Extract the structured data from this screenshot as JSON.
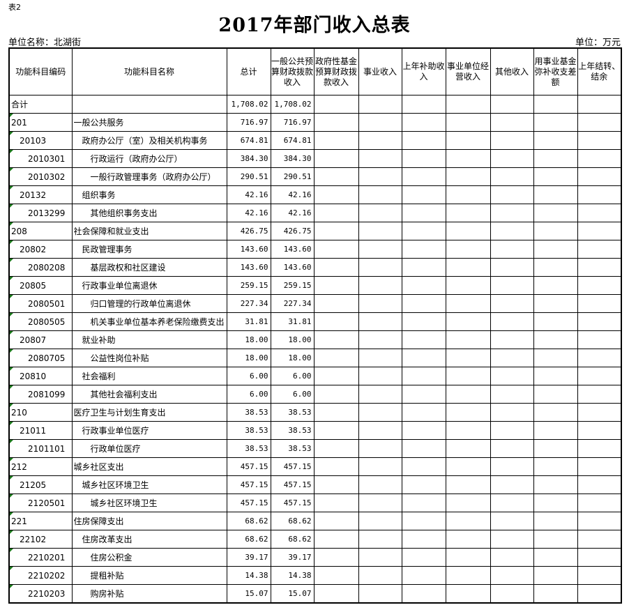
{
  "tag": "表2",
  "title": "2017年部门收入总表",
  "unit_name": "单位名称：北湖街",
  "unit": "单位：万元",
  "headers": [
    "功能科目编码",
    "功能科目名称",
    "总计",
    "一般公共预算财政拨款收入",
    "政府性基金预算财政拨款收入",
    "事业收入",
    "上年补助收入",
    "事业单位经营收入",
    "其他收入",
    "用事业基金弥补收支差额",
    "上年结转、结余"
  ],
  "rows": [
    {
      "code": "合计",
      "name": "",
      "total": "1,708.02",
      "general": "1,708.02",
      "level": 0
    },
    {
      "code": "201",
      "name": "一般公共服务",
      "total": "716.97",
      "general": "716.97",
      "level": 0
    },
    {
      "code": "20103",
      "name": "政府办公厅（室）及相关机构事务",
      "total": "674.81",
      "general": "674.81",
      "level": 1
    },
    {
      "code": "2010301",
      "name": "行政运行（政府办公厅）",
      "total": "384.30",
      "general": "384.30",
      "level": 2
    },
    {
      "code": "2010302",
      "name": "一般行政管理事务（政府办公厅）",
      "total": "290.51",
      "general": "290.51",
      "level": 2
    },
    {
      "code": "20132",
      "name": "组织事务",
      "total": "42.16",
      "general": "42.16",
      "level": 1
    },
    {
      "code": "2013299",
      "name": "其他组织事务支出",
      "total": "42.16",
      "general": "42.16",
      "level": 2
    },
    {
      "code": "208",
      "name": "社会保障和就业支出",
      "total": "426.75",
      "general": "426.75",
      "level": 0
    },
    {
      "code": "20802",
      "name": "民政管理事务",
      "total": "143.60",
      "general": "143.60",
      "level": 1
    },
    {
      "code": "2080208",
      "name": "基层政权和社区建设",
      "total": "143.60",
      "general": "143.60",
      "level": 2
    },
    {
      "code": "20805",
      "name": "行政事业单位离退休",
      "total": "259.15",
      "general": "259.15",
      "level": 1
    },
    {
      "code": "2080501",
      "name": "归口管理的行政单位离退休",
      "total": "227.34",
      "general": "227.34",
      "level": 2
    },
    {
      "code": "2080505",
      "name": "机关事业单位基本养老保险缴费支出",
      "total": "31.81",
      "general": "31.81",
      "level": 2
    },
    {
      "code": "20807",
      "name": "就业补助",
      "total": "18.00",
      "general": "18.00",
      "level": 1
    },
    {
      "code": "2080705",
      "name": "公益性岗位补贴",
      "total": "18.00",
      "general": "18.00",
      "level": 2
    },
    {
      "code": "20810",
      "name": "社会福利",
      "total": "6.00",
      "general": "6.00",
      "level": 1
    },
    {
      "code": "2081099",
      "name": "其他社会福利支出",
      "total": "6.00",
      "general": "6.00",
      "level": 2
    },
    {
      "code": "210",
      "name": "医疗卫生与计划生育支出",
      "total": "38.53",
      "general": "38.53",
      "level": 0
    },
    {
      "code": "21011",
      "name": "行政事业单位医疗",
      "total": "38.53",
      "general": "38.53",
      "level": 1
    },
    {
      "code": "2101101",
      "name": "行政单位医疗",
      "total": "38.53",
      "general": "38.53",
      "level": 2
    },
    {
      "code": "212",
      "name": "城乡社区支出",
      "total": "457.15",
      "general": "457.15",
      "level": 0
    },
    {
      "code": "21205",
      "name": "城乡社区环境卫生",
      "total": "457.15",
      "general": "457.15",
      "level": 1
    },
    {
      "code": "2120501",
      "name": "城乡社区环境卫生",
      "total": "457.15",
      "general": "457.15",
      "level": 2
    },
    {
      "code": "221",
      "name": "住房保障支出",
      "total": "68.62",
      "general": "68.62",
      "level": 0
    },
    {
      "code": "22102",
      "name": "住房改革支出",
      "total": "68.62",
      "general": "68.62",
      "level": 1
    },
    {
      "code": "2210201",
      "name": "住房公积金",
      "total": "39.17",
      "general": "39.17",
      "level": 2
    },
    {
      "code": "2210202",
      "name": "提租补贴",
      "total": "14.38",
      "general": "14.38",
      "level": 2
    },
    {
      "code": "2210203",
      "name": "购房补贴",
      "total": "15.07",
      "general": "15.07",
      "level": 2
    }
  ]
}
